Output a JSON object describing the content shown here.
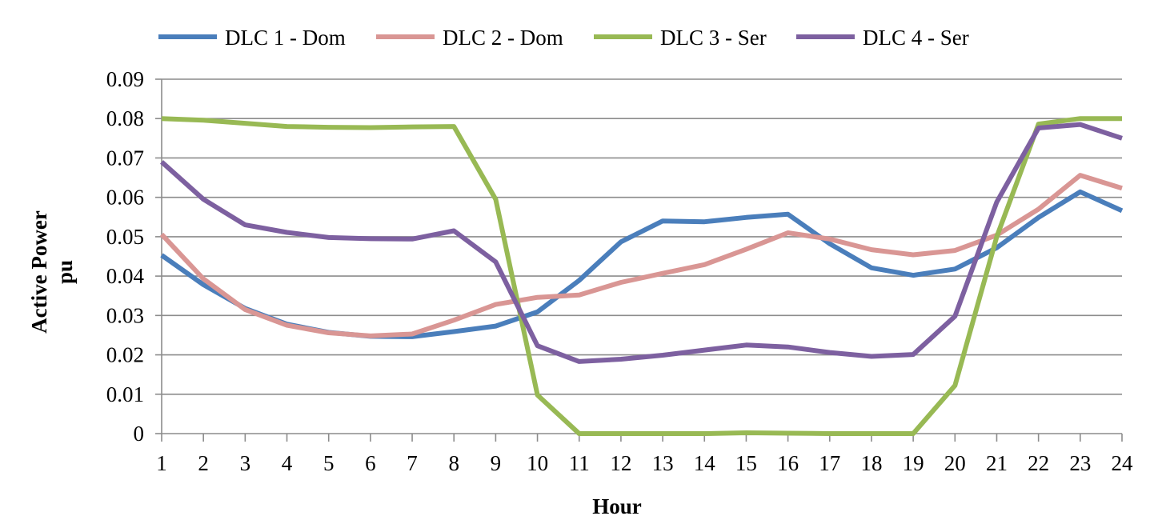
{
  "chart_data": {
    "type": "line",
    "title": "",
    "xlabel": "Hour",
    "ylabel_lines": [
      "Active Power",
      "pu"
    ],
    "x": [
      1,
      2,
      3,
      4,
      5,
      6,
      7,
      8,
      9,
      10,
      11,
      12,
      13,
      14,
      15,
      16,
      17,
      18,
      19,
      20,
      21,
      22,
      23,
      24
    ],
    "xtick_labels": [
      "1",
      "2",
      "3",
      "4",
      "5",
      "6",
      "7",
      "8",
      "9",
      "10",
      "11",
      "12",
      "13",
      "14",
      "15",
      "16",
      "17",
      "18",
      "19",
      "20",
      "21",
      "22",
      "23",
      "24"
    ],
    "ylim": [
      0,
      0.09
    ],
    "yticks": [
      0,
      0.01,
      0.02,
      0.03,
      0.04,
      0.05,
      0.06,
      0.07,
      0.08,
      0.09
    ],
    "ytick_labels": [
      "0",
      "0.01",
      "0.02",
      "0.03",
      "0.04",
      "0.05",
      "0.06",
      "0.07",
      "0.08",
      "0.09"
    ],
    "grid": true,
    "legend_position": "top",
    "series": [
      {
        "name": "DLC 1 - Dom",
        "color": "#4a7ebb",
        "values": [
          0.0453,
          0.0378,
          0.0318,
          0.0278,
          0.0257,
          0.0247,
          0.0246,
          0.0259,
          0.0273,
          0.0309,
          0.0389,
          0.0487,
          0.054,
          0.0538,
          0.0549,
          0.0557,
          0.0482,
          0.0421,
          0.0402,
          0.0418,
          0.0472,
          0.0549,
          0.0614,
          0.0566
        ]
      },
      {
        "name": "DLC 2 - Dom",
        "color": "#d99694",
        "values": [
          0.0506,
          0.0393,
          0.0315,
          0.0275,
          0.0256,
          0.0248,
          0.0253,
          0.0288,
          0.0328,
          0.0346,
          0.0352,
          0.0384,
          0.0407,
          0.0429,
          0.0468,
          0.051,
          0.0494,
          0.0467,
          0.0454,
          0.0465,
          0.0504,
          0.057,
          0.0656,
          0.0623
        ]
      },
      {
        "name": "DLC 3 - Ser",
        "color": "#98b954",
        "values": [
          0.08,
          0.0796,
          0.0788,
          0.078,
          0.0778,
          0.0777,
          0.0779,
          0.078,
          0.0595,
          0.0098,
          0.0,
          0.0,
          0.0,
          0.0,
          0.0002,
          0.0001,
          0.0,
          0.0,
          0.0,
          0.0122,
          0.05,
          0.0786,
          0.08,
          0.08
        ]
      },
      {
        "name": "DLC 4 - Ser",
        "color": "#7d60a0",
        "values": [
          0.069,
          0.0595,
          0.053,
          0.0511,
          0.0498,
          0.0495,
          0.0494,
          0.0515,
          0.0436,
          0.0223,
          0.0183,
          0.0189,
          0.0199,
          0.0212,
          0.0225,
          0.022,
          0.0206,
          0.0196,
          0.0201,
          0.0298,
          0.0588,
          0.0776,
          0.0785,
          0.075
        ]
      }
    ]
  }
}
